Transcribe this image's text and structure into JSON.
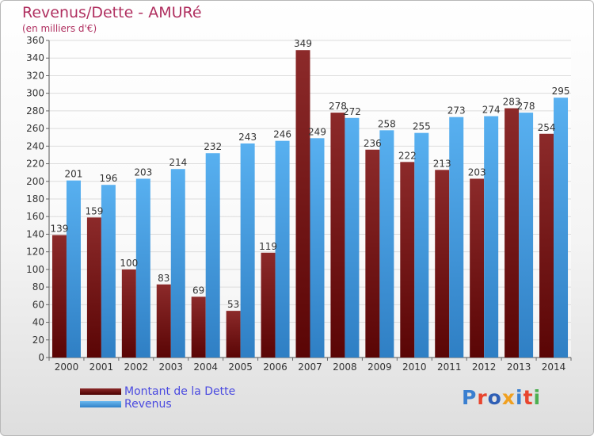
{
  "title": "Revenus/Dette - AMURé",
  "subtitle": "(en milliers d'€)",
  "logo": {
    "letters": [
      "P",
      "r",
      "o",
      "x",
      "i",
      "t",
      "i"
    ],
    "colors": [
      "#3a7fd0",
      "#e8452e",
      "#2f5fb5",
      "#f0a020",
      "#3a7fd0",
      "#e8452e",
      "#4caf50"
    ]
  },
  "legend": {
    "debt_label": "Montant de la Dette",
    "revenue_label": "Revenus"
  },
  "colors": {
    "debt": "#7a1a1a",
    "revenue": "#4aa3e8",
    "title": "#b03060"
  },
  "chart_data": {
    "type": "bar",
    "categories": [
      "2000",
      "2001",
      "2002",
      "2003",
      "2004",
      "2005",
      "2006",
      "2007",
      "2008",
      "2009",
      "2010",
      "2011",
      "2012",
      "2013",
      "2014"
    ],
    "series": [
      {
        "name": "Montant de la Dette",
        "values": [
          139,
          159,
          100,
          83,
          69,
          53,
          119,
          349,
          278,
          236,
          222,
          213,
          203,
          283,
          254
        ]
      },
      {
        "name": "Revenus",
        "values": [
          201,
          196,
          203,
          214,
          232,
          243,
          246,
          249,
          272,
          258,
          255,
          273,
          274,
          278,
          295
        ]
      }
    ],
    "title": "Revenus/Dette - AMURé",
    "subtitle": "(en milliers d'€)",
    "xlabel": "",
    "ylabel": "",
    "ylim": [
      0,
      360
    ],
    "yticks": [
      0,
      20,
      40,
      60,
      80,
      100,
      120,
      140,
      160,
      180,
      200,
      220,
      240,
      260,
      280,
      300,
      320,
      340,
      360
    ],
    "grid": true,
    "legend_position": "bottom-left"
  }
}
